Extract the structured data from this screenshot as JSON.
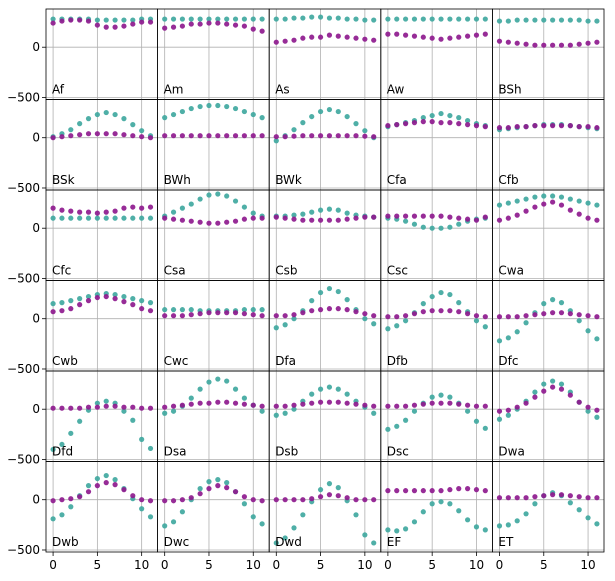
{
  "figure": {
    "layout": "6x5 grid of small multiples, shared axes",
    "colors": {
      "series_a": "#8e1a8e",
      "series_b": "#40a8a0",
      "grid": "#b0b0b0",
      "frame": "#000000"
    }
  },
  "chart_data": {
    "type": "scatter",
    "grid": true,
    "x": [
      0,
      1,
      2,
      3,
      4,
      5,
      6,
      7,
      8,
      9,
      10,
      11
    ],
    "xticks": [
      0,
      5,
      10
    ],
    "yticks": [
      -500,
      0
    ],
    "xlim": [
      -0.8,
      11.8
    ],
    "ylim": [
      -520,
      380
    ],
    "series_names": [],
    "panels": [
      {
        "label": "Af",
        "purple": [
          240,
          260,
          270,
          270,
          260,
          220,
          200,
          200,
          210,
          230,
          250,
          250
        ],
        "teal": [
          280,
          280,
          280,
          280,
          280,
          270,
          270,
          270,
          270,
          270,
          280,
          280
        ]
      },
      {
        "label": "Am",
        "purple": [
          190,
          200,
          210,
          230,
          230,
          240,
          240,
          230,
          220,
          210,
          180,
          160
        ],
        "teal": [
          280,
          280,
          280,
          280,
          280,
          280,
          280,
          280,
          280,
          280,
          280,
          280
        ]
      },
      {
        "label": "As",
        "purple": [
          50,
          60,
          70,
          90,
          100,
          100,
          120,
          110,
          100,
          90,
          80,
          70
        ],
        "teal": [
          280,
          280,
          290,
          290,
          300,
          300,
          290,
          290,
          280,
          280,
          270,
          270
        ]
      },
      {
        "label": "Aw",
        "purple": [
          130,
          130,
          120,
          110,
          100,
          90,
          80,
          90,
          100,
          110,
          120,
          130
        ],
        "teal": [
          280,
          280,
          280,
          280,
          280,
          280,
          280,
          280,
          280,
          280,
          280,
          280
        ]
      },
      {
        "label": "BSh",
        "purple": [
          60,
          50,
          40,
          30,
          20,
          20,
          20,
          20,
          20,
          30,
          40,
          50
        ],
        "teal": [
          260,
          260,
          270,
          270,
          270,
          270,
          270,
          270,
          270,
          270,
          260,
          260
        ]
      },
      {
        "label": "BSk",
        "purple": [
          0,
          10,
          20,
          30,
          40,
          40,
          40,
          40,
          30,
          20,
          10,
          0
        ],
        "teal": [
          10,
          40,
          80,
          140,
          190,
          230,
          250,
          230,
          190,
          130,
          70,
          20
        ]
      },
      {
        "label": "BWh",
        "purple": [
          20,
          20,
          20,
          20,
          20,
          20,
          20,
          20,
          20,
          20,
          20,
          20
        ],
        "teal": [
          200,
          230,
          260,
          290,
          310,
          320,
          320,
          310,
          290,
          260,
          230,
          200
        ]
      },
      {
        "label": "BWk",
        "purple": [
          10,
          10,
          15,
          20,
          20,
          20,
          20,
          20,
          20,
          20,
          15,
          10
        ],
        "teal": [
          -30,
          20,
          80,
          150,
          210,
          260,
          280,
          260,
          210,
          140,
          70,
          0
        ]
      },
      {
        "label": "Cfa",
        "purple": [
          120,
          130,
          140,
          150,
          160,
          160,
          150,
          150,
          140,
          130,
          120,
          110
        ],
        "teal": [
          110,
          130,
          150,
          170,
          200,
          220,
          240,
          220,
          200,
          170,
          140,
          120
        ]
      },
      {
        "label": "Cfb",
        "purple": [
          100,
          100,
          110,
          110,
          120,
          120,
          120,
          120,
          120,
          110,
          110,
          100
        ],
        "teal": [
          80,
          90,
          100,
          110,
          120,
          130,
          130,
          130,
          120,
          110,
          100,
          90
        ]
      },
      {
        "label": "Cfc",
        "purple": [
          200,
          180,
          170,
          160,
          160,
          150,
          160,
          170,
          200,
          210,
          200,
          210
        ],
        "teal": [
          100,
          100,
          100,
          100,
          100,
          100,
          100,
          100,
          100,
          100,
          100,
          100
        ]
      },
      {
        "label": "Csa",
        "purple": [
          100,
          90,
          80,
          70,
          60,
          50,
          50,
          60,
          70,
          90,
          100,
          100
        ],
        "teal": [
          120,
          160,
          200,
          240,
          290,
          330,
          340,
          320,
          270,
          210,
          150,
          120
        ]
      },
      {
        "label": "Csb",
        "purple": [
          110,
          100,
          90,
          80,
          80,
          80,
          80,
          80,
          90,
          100,
          110,
          110
        ],
        "teal": [
          120,
          120,
          130,
          140,
          160,
          180,
          190,
          180,
          150,
          130,
          120,
          110
        ]
      },
      {
        "label": "Csc",
        "purple": [
          120,
          120,
          120,
          120,
          120,
          120,
          120,
          110,
          100,
          90,
          80,
          110
        ],
        "teal": [
          100,
          90,
          70,
          40,
          10,
          0,
          0,
          10,
          40,
          70,
          90,
          100
        ]
      },
      {
        "label": "Cwa",
        "purple": [
          80,
          100,
          130,
          170,
          210,
          240,
          260,
          230,
          180,
          140,
          100,
          80
        ],
        "teal": [
          230,
          250,
          270,
          290,
          310,
          320,
          320,
          310,
          290,
          270,
          250,
          230
        ]
      },
      {
        "label": "Cwb",
        "purple": [
          70,
          80,
          100,
          140,
          180,
          210,
          220,
          200,
          170,
          140,
          100,
          80
        ],
        "teal": [
          150,
          160,
          180,
          200,
          220,
          240,
          250,
          240,
          220,
          200,
          180,
          160
        ]
      },
      {
        "label": "Cwc",
        "purple": [
          30,
          30,
          30,
          40,
          50,
          60,
          60,
          60,
          60,
          50,
          40,
          30
        ],
        "teal": [
          90,
          90,
          90,
          90,
          80,
          80,
          80,
          80,
          80,
          90,
          90,
          90
        ]
      },
      {
        "label": "Dfa",
        "purple": [
          30,
          30,
          40,
          60,
          80,
          90,
          100,
          100,
          90,
          70,
          50,
          30
        ],
        "teal": [
          -90,
          -60,
          0,
          80,
          180,
          260,
          300,
          270,
          190,
          90,
          0,
          -50
        ]
      },
      {
        "label": "Dfb",
        "purple": [
          20,
          20,
          30,
          50,
          70,
          80,
          80,
          80,
          70,
          50,
          30,
          20
        ],
        "teal": [
          -100,
          -70,
          -20,
          60,
          150,
          220,
          260,
          240,
          160,
          70,
          -20,
          -80
        ]
      },
      {
        "label": "Dfc",
        "purple": [
          20,
          20,
          20,
          30,
          40,
          50,
          60,
          60,
          50,
          40,
          30,
          20
        ],
        "teal": [
          -220,
          -190,
          -130,
          -40,
          60,
          150,
          190,
          160,
          80,
          -20,
          -120,
          -200
        ]
      },
      {
        "label": "Dfd",
        "purple": [
          10,
          10,
          10,
          10,
          20,
          20,
          30,
          30,
          20,
          20,
          10,
          10
        ],
        "teal": [
          -400,
          -350,
          -240,
          -120,
          -10,
          60,
          80,
          60,
          -20,
          -110,
          -300,
          -390
        ]
      },
      {
        "label": "Dsa",
        "purple": [
          20,
          30,
          40,
          50,
          60,
          60,
          70,
          70,
          60,
          50,
          40,
          30
        ],
        "teal": [
          -40,
          -20,
          30,
          110,
          200,
          270,
          300,
          280,
          200,
          110,
          40,
          -20
        ]
      },
      {
        "label": "Dsb",
        "purple": [
          30,
          30,
          40,
          50,
          60,
          70,
          70,
          70,
          60,
          50,
          40,
          30
        ],
        "teal": [
          -60,
          -40,
          0,
          80,
          150,
          200,
          220,
          200,
          150,
          80,
          20,
          -40
        ]
      },
      {
        "label": "Dsc",
        "purple": [
          30,
          30,
          30,
          40,
          50,
          60,
          60,
          60,
          50,
          40,
          30,
          30
        ],
        "teal": [
          -200,
          -170,
          -110,
          -20,
          60,
          120,
          140,
          120,
          60,
          -20,
          -120,
          -190
        ]
      },
      {
        "label": "Dwa",
        "purple": [
          -20,
          -10,
          20,
          60,
          120,
          180,
          220,
          200,
          140,
          70,
          20,
          -10
        ],
        "teal": [
          -100,
          -60,
          0,
          80,
          170,
          250,
          280,
          250,
          170,
          70,
          -20,
          -80
        ]
      },
      {
        "label": "Dwb",
        "purple": [
          -10,
          0,
          10,
          30,
          80,
          140,
          170,
          150,
          100,
          40,
          0,
          -10
        ],
        "teal": [
          -190,
          -150,
          -70,
          40,
          140,
          210,
          240,
          200,
          110,
          10,
          -90,
          -170
        ]
      },
      {
        "label": "Dwc",
        "purple": [
          -10,
          -10,
          0,
          20,
          60,
          110,
          140,
          120,
          80,
          30,
          0,
          -10
        ],
        "teal": [
          -260,
          -220,
          -120,
          0,
          110,
          180,
          200,
          170,
          80,
          -40,
          -170,
          -240
        ]
      },
      {
        "label": "Dwd",
        "purple": [
          0,
          0,
          0,
          0,
          10,
          30,
          50,
          40,
          20,
          0,
          0,
          0
        ],
        "teal": [
          -430,
          -380,
          -280,
          -150,
          -20,
          100,
          160,
          120,
          -10,
          -150,
          -350,
          -430
        ]
      },
      {
        "label": "EF",
        "purple": [
          90,
          90,
          90,
          90,
          90,
          90,
          90,
          100,
          110,
          110,
          100,
          90
        ],
        "teal": [
          -300,
          -310,
          -290,
          -220,
          -120,
          -40,
          -20,
          -40,
          -110,
          -200,
          -270,
          -300
        ]
      },
      {
        "label": "ET",
        "purple": [
          20,
          20,
          20,
          20,
          30,
          40,
          50,
          50,
          40,
          30,
          20,
          20
        ],
        "teal": [
          -260,
          -250,
          -210,
          -140,
          -40,
          40,
          70,
          40,
          -30,
          -100,
          -180,
          -240
        ]
      }
    ]
  }
}
